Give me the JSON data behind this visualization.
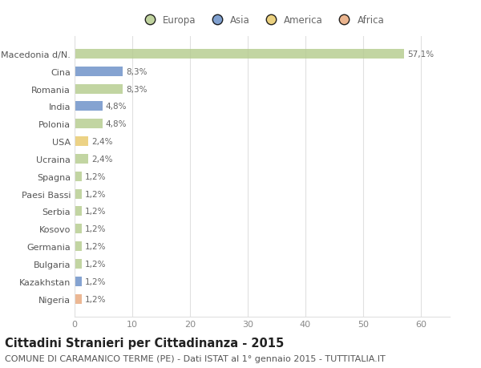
{
  "categories": [
    "Macedonia d/N.",
    "Cina",
    "Romania",
    "India",
    "Polonia",
    "USA",
    "Ucraina",
    "Spagna",
    "Paesi Bassi",
    "Serbia",
    "Kosovo",
    "Germania",
    "Bulgaria",
    "Kazakhstan",
    "Nigeria"
  ],
  "values": [
    57.1,
    8.3,
    8.3,
    4.8,
    4.8,
    2.4,
    2.4,
    1.2,
    1.2,
    1.2,
    1.2,
    1.2,
    1.2,
    1.2,
    1.2
  ],
  "labels": [
    "57,1%",
    "8,3%",
    "8,3%",
    "4,8%",
    "4,8%",
    "2,4%",
    "2,4%",
    "1,2%",
    "1,2%",
    "1,2%",
    "1,2%",
    "1,2%",
    "1,2%",
    "1,2%",
    "1,2%"
  ],
  "colors": [
    "#b5cc8e",
    "#6a8fc7",
    "#b5cc8e",
    "#6a8fc7",
    "#b5cc8e",
    "#e8c96a",
    "#b5cc8e",
    "#b5cc8e",
    "#b5cc8e",
    "#b5cc8e",
    "#b5cc8e",
    "#b5cc8e",
    "#b5cc8e",
    "#6a8fc7",
    "#e8a87c"
  ],
  "legend_labels": [
    "Europa",
    "Asia",
    "America",
    "Africa"
  ],
  "legend_colors": [
    "#b5cc8e",
    "#6a8fc7",
    "#e8c96a",
    "#e8a87c"
  ],
  "title": "Cittadini Stranieri per Cittadinanza - 2015",
  "subtitle": "COMUNE DI CARAMANICO TERME (PE) - Dati ISTAT al 1° gennaio 2015 - TUTTITALIA.IT",
  "xlim": [
    0,
    65
  ],
  "xticks": [
    0,
    10,
    20,
    30,
    40,
    50,
    60
  ],
  "background_color": "#ffffff",
  "grid_color": "#e0e0e0",
  "bar_height": 0.55,
  "title_fontsize": 10.5,
  "subtitle_fontsize": 8,
  "label_fontsize": 7.5,
  "tick_fontsize": 8,
  "legend_fontsize": 8.5
}
